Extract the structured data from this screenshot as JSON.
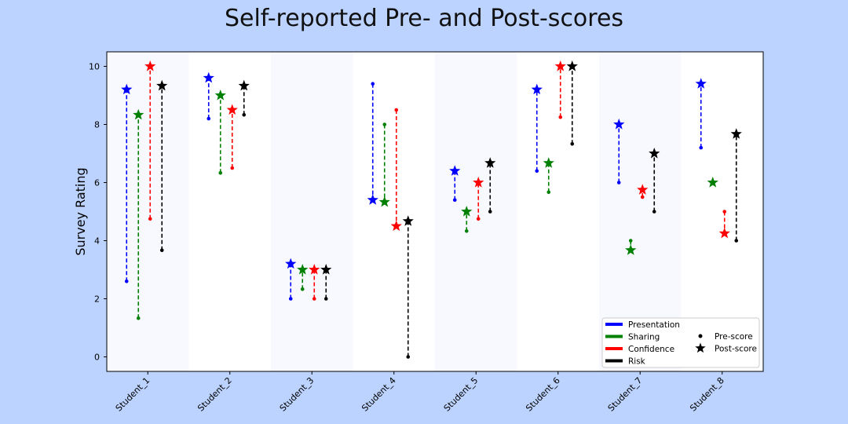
{
  "chart_data": {
    "type": "scatter",
    "title": "Self-reported Pre- and Post-scores",
    "xlabel": "",
    "ylabel": "Survey Rating",
    "categories": [
      "Student_1",
      "Student_2",
      "Student_3",
      "Student_4",
      "Student_5",
      "Student_6",
      "Student_7",
      "Student_8"
    ],
    "ylim": [
      -0.5,
      10.5
    ],
    "yticks": [
      0,
      2,
      4,
      6,
      8,
      10
    ],
    "grid": false,
    "series": [
      {
        "name": "Presentation",
        "color": "#0000ff",
        "pre": [
          2.6,
          8.2,
          2.0,
          9.4,
          5.4,
          6.4,
          6.0,
          7.2
        ],
        "post": [
          9.2,
          9.6,
          3.2,
          5.4,
          6.4,
          9.2,
          8.0,
          9.4
        ]
      },
      {
        "name": "Sharing",
        "color": "#008000",
        "pre": [
          1.33,
          6.33,
          2.33,
          8.0,
          4.33,
          5.67,
          4.0,
          6.0
        ],
        "post": [
          8.33,
          9.0,
          3.0,
          5.33,
          5.0,
          6.67,
          3.67,
          6.0
        ]
      },
      {
        "name": "Confidence",
        "color": "#ff0000",
        "pre": [
          4.75,
          6.5,
          2.0,
          8.5,
          4.75,
          8.25,
          5.5,
          5.0
        ],
        "post": [
          10.0,
          8.5,
          3.0,
          4.5,
          6.0,
          10.0,
          5.75,
          4.25
        ]
      },
      {
        "name": "Risk",
        "color": "#000000",
        "pre": [
          3.67,
          8.33,
          2.0,
          0.0,
          5.0,
          7.33,
          5.0,
          4.0
        ],
        "post": [
          9.33,
          9.33,
          3.0,
          4.67,
          6.67,
          10.0,
          7.0,
          7.67
        ]
      }
    ],
    "marker_legend": [
      {
        "label": "Pre-score",
        "marker": "dot"
      },
      {
        "label": "Post-score",
        "marker": "star"
      }
    ],
    "legend_placement": "lower-right",
    "band_color": "#f8f9ff"
  }
}
